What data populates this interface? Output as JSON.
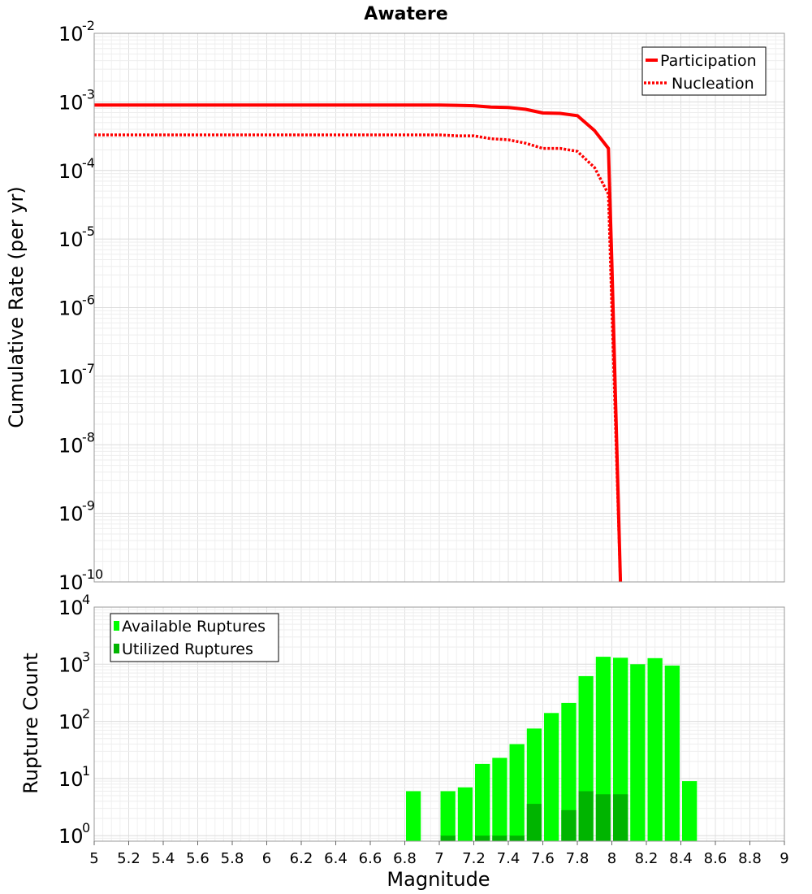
{
  "chart_data": [
    {
      "type": "line",
      "title": "Awatere",
      "ylabel": "Cumulative Rate (per yr)",
      "yscale": "log",
      "ylim": [
        1e-10,
        0.01
      ],
      "y_tick_base": "10",
      "y_tick_exponents": [
        "-10",
        "-9",
        "-8",
        "-7",
        "-6",
        "-5",
        "-4",
        "-3",
        "-2"
      ],
      "xlim": [
        5,
        9
      ],
      "legend": "top-right",
      "series": [
        {
          "name": "Participation",
          "color": "#ff0000",
          "style": "solid",
          "points": [
            [
              5.0,
              0.0009
            ],
            [
              5.5,
              0.0009
            ],
            [
              6.0,
              0.0009
            ],
            [
              6.5,
              0.0009
            ],
            [
              7.0,
              0.0009
            ],
            [
              7.1,
              0.00089
            ],
            [
              7.2,
              0.00088
            ],
            [
              7.3,
              0.00084
            ],
            [
              7.4,
              0.00083
            ],
            [
              7.5,
              0.00078
            ],
            [
              7.6,
              0.00069
            ],
            [
              7.7,
              0.00068
            ],
            [
              7.8,
              0.00063
            ],
            [
              7.9,
              0.00038
            ],
            [
              7.98,
              0.00021
            ],
            [
              8.0,
              4.5e-06
            ],
            [
              8.05,
              1e-10
            ]
          ]
        },
        {
          "name": "Nucleation",
          "color": "#ff0000",
          "style": "dotted",
          "points": [
            [
              5.0,
              0.00033
            ],
            [
              5.5,
              0.00033
            ],
            [
              6.0,
              0.00033
            ],
            [
              6.5,
              0.00033
            ],
            [
              7.0,
              0.00033
            ],
            [
              7.1,
              0.00032
            ],
            [
              7.2,
              0.00032
            ],
            [
              7.3,
              0.00029
            ],
            [
              7.4,
              0.00028
            ],
            [
              7.5,
              0.00025
            ],
            [
              7.6,
              0.00021
            ],
            [
              7.7,
              0.00021
            ],
            [
              7.8,
              0.00019
            ],
            [
              7.9,
              0.00011
            ],
            [
              7.98,
              4.5e-05
            ],
            [
              8.0,
              1e-06
            ],
            [
              8.05,
              1e-10
            ]
          ]
        }
      ]
    },
    {
      "type": "bar",
      "xlabel": "Magnitude",
      "ylabel": "Rupture Count",
      "yscale": "log",
      "ylim": [
        0.8,
        10000
      ],
      "y_tick_base": "10",
      "y_tick_exponents": [
        "0",
        "1",
        "2",
        "3",
        "4"
      ],
      "xlim": [
        5,
        9
      ],
      "x_ticks": [
        "5",
        "5.2",
        "5.4",
        "5.6",
        "5.8",
        "6",
        "6.2",
        "6.4",
        "6.6",
        "6.8",
        "7",
        "7.2",
        "7.4",
        "7.6",
        "7.8",
        "8",
        "8.2",
        "8.4",
        "8.6",
        "8.8",
        "9"
      ],
      "bin_width": 0.1,
      "legend": "top-left",
      "series": [
        {
          "name": "Available Ruptures",
          "color": "#00ff00",
          "bins": [
            [
              6.85,
              6
            ],
            [
              7.05,
              6
            ],
            [
              7.15,
              7
            ],
            [
              7.25,
              18
            ],
            [
              7.35,
              23
            ],
            [
              7.45,
              40
            ],
            [
              7.55,
              75
            ],
            [
              7.65,
              140
            ],
            [
              7.75,
              210
            ],
            [
              7.85,
              620
            ],
            [
              7.95,
              1350
            ],
            [
              8.05,
              1300
            ],
            [
              8.15,
              1000
            ],
            [
              8.25,
              1280
            ],
            [
              8.35,
              950
            ],
            [
              8.45,
              9
            ]
          ]
        },
        {
          "name": "Utilized Ruptures",
          "color": "#00b400",
          "bins": [
            [
              7.05,
              1
            ],
            [
              7.25,
              1
            ],
            [
              7.35,
              1
            ],
            [
              7.45,
              1
            ],
            [
              7.55,
              3.6
            ],
            [
              7.75,
              2.8
            ],
            [
              7.85,
              6
            ],
            [
              7.95,
              5.3
            ],
            [
              8.05,
              5.3
            ]
          ]
        }
      ]
    }
  ]
}
